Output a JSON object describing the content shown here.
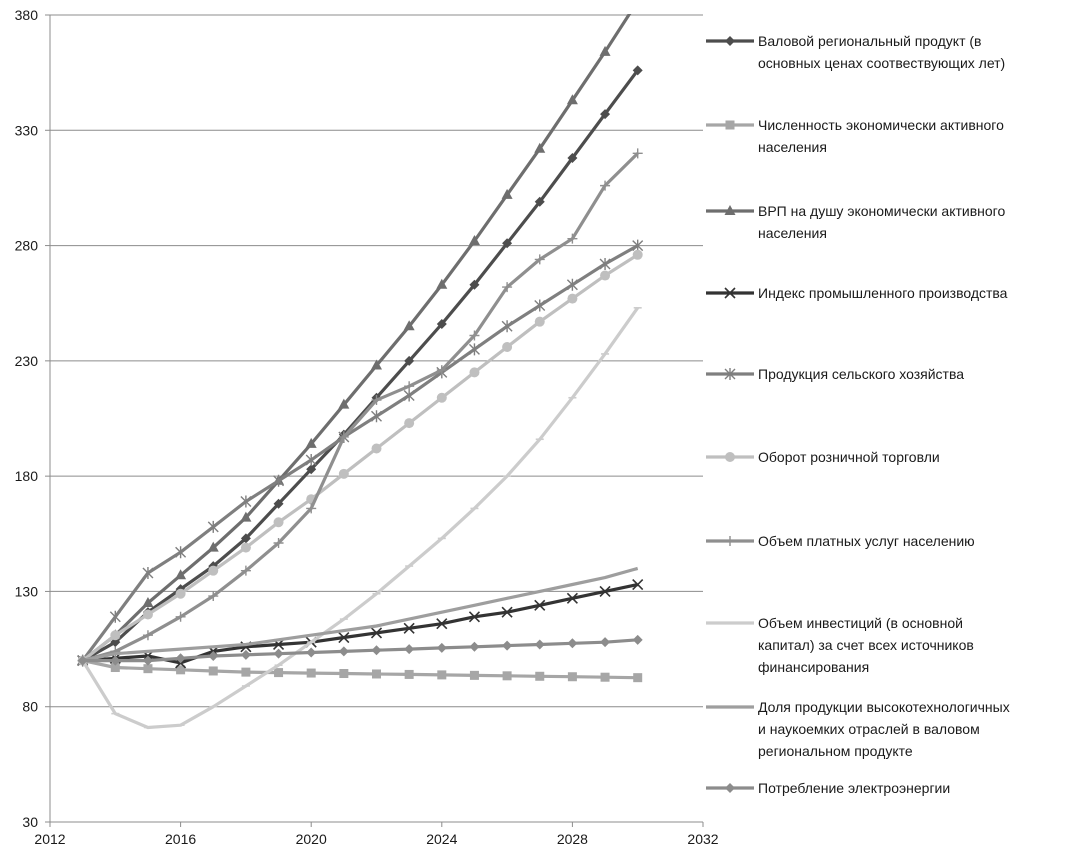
{
  "chart_data": {
    "type": "line",
    "title": "",
    "xlabel": "",
    "ylabel": "",
    "xlim": [
      2012,
      2032
    ],
    "ylim": [
      30,
      380
    ],
    "x_ticks": [
      "2012",
      "2016",
      "2020",
      "2024",
      "2028",
      "2032"
    ],
    "y_ticks": [
      "30",
      "80",
      "130",
      "180",
      "230",
      "280",
      "330",
      "380"
    ],
    "grid": "horizontal",
    "legend_position": "right",
    "x": [
      2013,
      2014,
      2015,
      2016,
      2017,
      2018,
      2019,
      2020,
      2021,
      2022,
      2023,
      2024,
      2025,
      2026,
      2027,
      2028,
      2029,
      2030
    ],
    "series": [
      {
        "name": "Валовой региональный продукт (в основных ценах соотвествующих лет)",
        "legend_lines": [
          "Валовой региональный продукт (в",
          "основных ценах соотвествующих лет)"
        ],
        "color": "#4d4d4d",
        "marker": "diamond",
        "values": [
          100,
          108,
          121,
          131,
          141,
          153,
          168,
          183,
          198,
          214,
          230,
          246,
          263,
          281,
          299,
          318,
          337,
          356
        ]
      },
      {
        "name": "Численность экономически активного населения",
        "legend_lines": [
          "Численность экономически активного",
          "населения"
        ],
        "color": "#a6a6a6",
        "marker": "square",
        "values": [
          100,
          97,
          96.5,
          96,
          95.5,
          95,
          94.8,
          94.6,
          94.4,
          94.2,
          94,
          93.8,
          93.6,
          93.4,
          93.2,
          93,
          92.8,
          92.6
        ]
      },
      {
        "name": "ВРП на душу экономически активного населения",
        "legend_lines": [
          "ВРП на душу экономически активного",
          "населения"
        ],
        "color": "#6e6e6e",
        "marker": "triangle",
        "values": [
          100,
          111,
          125,
          137,
          149,
          162,
          178,
          194,
          211,
          228,
          245,
          263,
          282,
          302,
          322,
          343,
          364,
          386
        ]
      },
      {
        "name": "Индекс промышленного производства",
        "legend_lines": [
          "Индекс промышленного производства"
        ],
        "color": "#333333",
        "marker": "x",
        "values": [
          100,
          101,
          102,
          99,
          104,
          106,
          107,
          108,
          110,
          112,
          114,
          116,
          119,
          121,
          124,
          127,
          130,
          133
        ]
      },
      {
        "name": "Продукция сельского хозяйства",
        "legend_lines": [
          "Продукция сельского хозяйства"
        ],
        "color": "#7f7f7f",
        "marker": "star",
        "values": [
          100,
          119,
          138,
          147,
          158,
          169,
          178,
          187,
          197,
          206,
          215,
          225,
          235,
          245,
          254,
          263,
          272,
          280
        ]
      },
      {
        "name": "Оборот розничной торговли",
        "legend_lines": [
          "Оборот розничной торговли"
        ],
        "color": "#bfbfbf",
        "marker": "circle",
        "values": [
          100,
          111,
          120,
          129,
          139,
          149,
          160,
          170,
          181,
          192,
          203,
          214,
          225,
          236,
          247,
          257,
          267,
          276
        ]
      },
      {
        "name": "Объем платных услуг населению",
        "legend_lines": [
          "Объем платных услуг населению"
        ],
        "color": "#8f8f8f",
        "marker": "plus",
        "values": [
          100,
          104,
          111,
          119,
          128,
          139,
          151,
          166,
          197,
          213,
          219,
          226,
          241,
          262,
          274,
          283,
          306,
          320
        ]
      },
      {
        "name": "Объем инвестиций (в основной капитал) за счет всех источников финансирования",
        "legend_lines": [
          "Объем инвестиций (в основной",
          "капитал) за счет всех источников",
          "финансирования"
        ],
        "color": "#cccccc",
        "marker": "dash",
        "values": [
          100,
          77,
          71,
          72,
          80,
          89,
          98,
          108,
          118,
          129,
          141,
          153,
          166,
          180,
          196,
          214,
          233,
          253
        ]
      },
      {
        "name": "Доля продукции высокотехнологичных и наукоемких отраслей в валовом региональном продукте",
        "legend_lines": [
          "Доля продукции высокотехнологичных",
          "и наукоемких отраслей в валовом",
          "региональном продукте"
        ],
        "color": "#9e9e9e",
        "marker": "none",
        "values": [
          100,
          103,
          104,
          105,
          106,
          107,
          109,
          111,
          113,
          115,
          118,
          121,
          124,
          127,
          130,
          133,
          136,
          140
        ]
      },
      {
        "name": "Потребление электроэнергии",
        "legend_lines": [
          "Потребление электроэнергии"
        ],
        "color": "#8c8c8c",
        "marker": "diamond",
        "values": [
          100,
          100,
          100,
          101,
          102,
          102.5,
          103,
          103.5,
          104,
          104.5,
          105,
          105.5,
          106,
          106.5,
          107,
          107.5,
          108,
          109
        ]
      }
    ]
  }
}
